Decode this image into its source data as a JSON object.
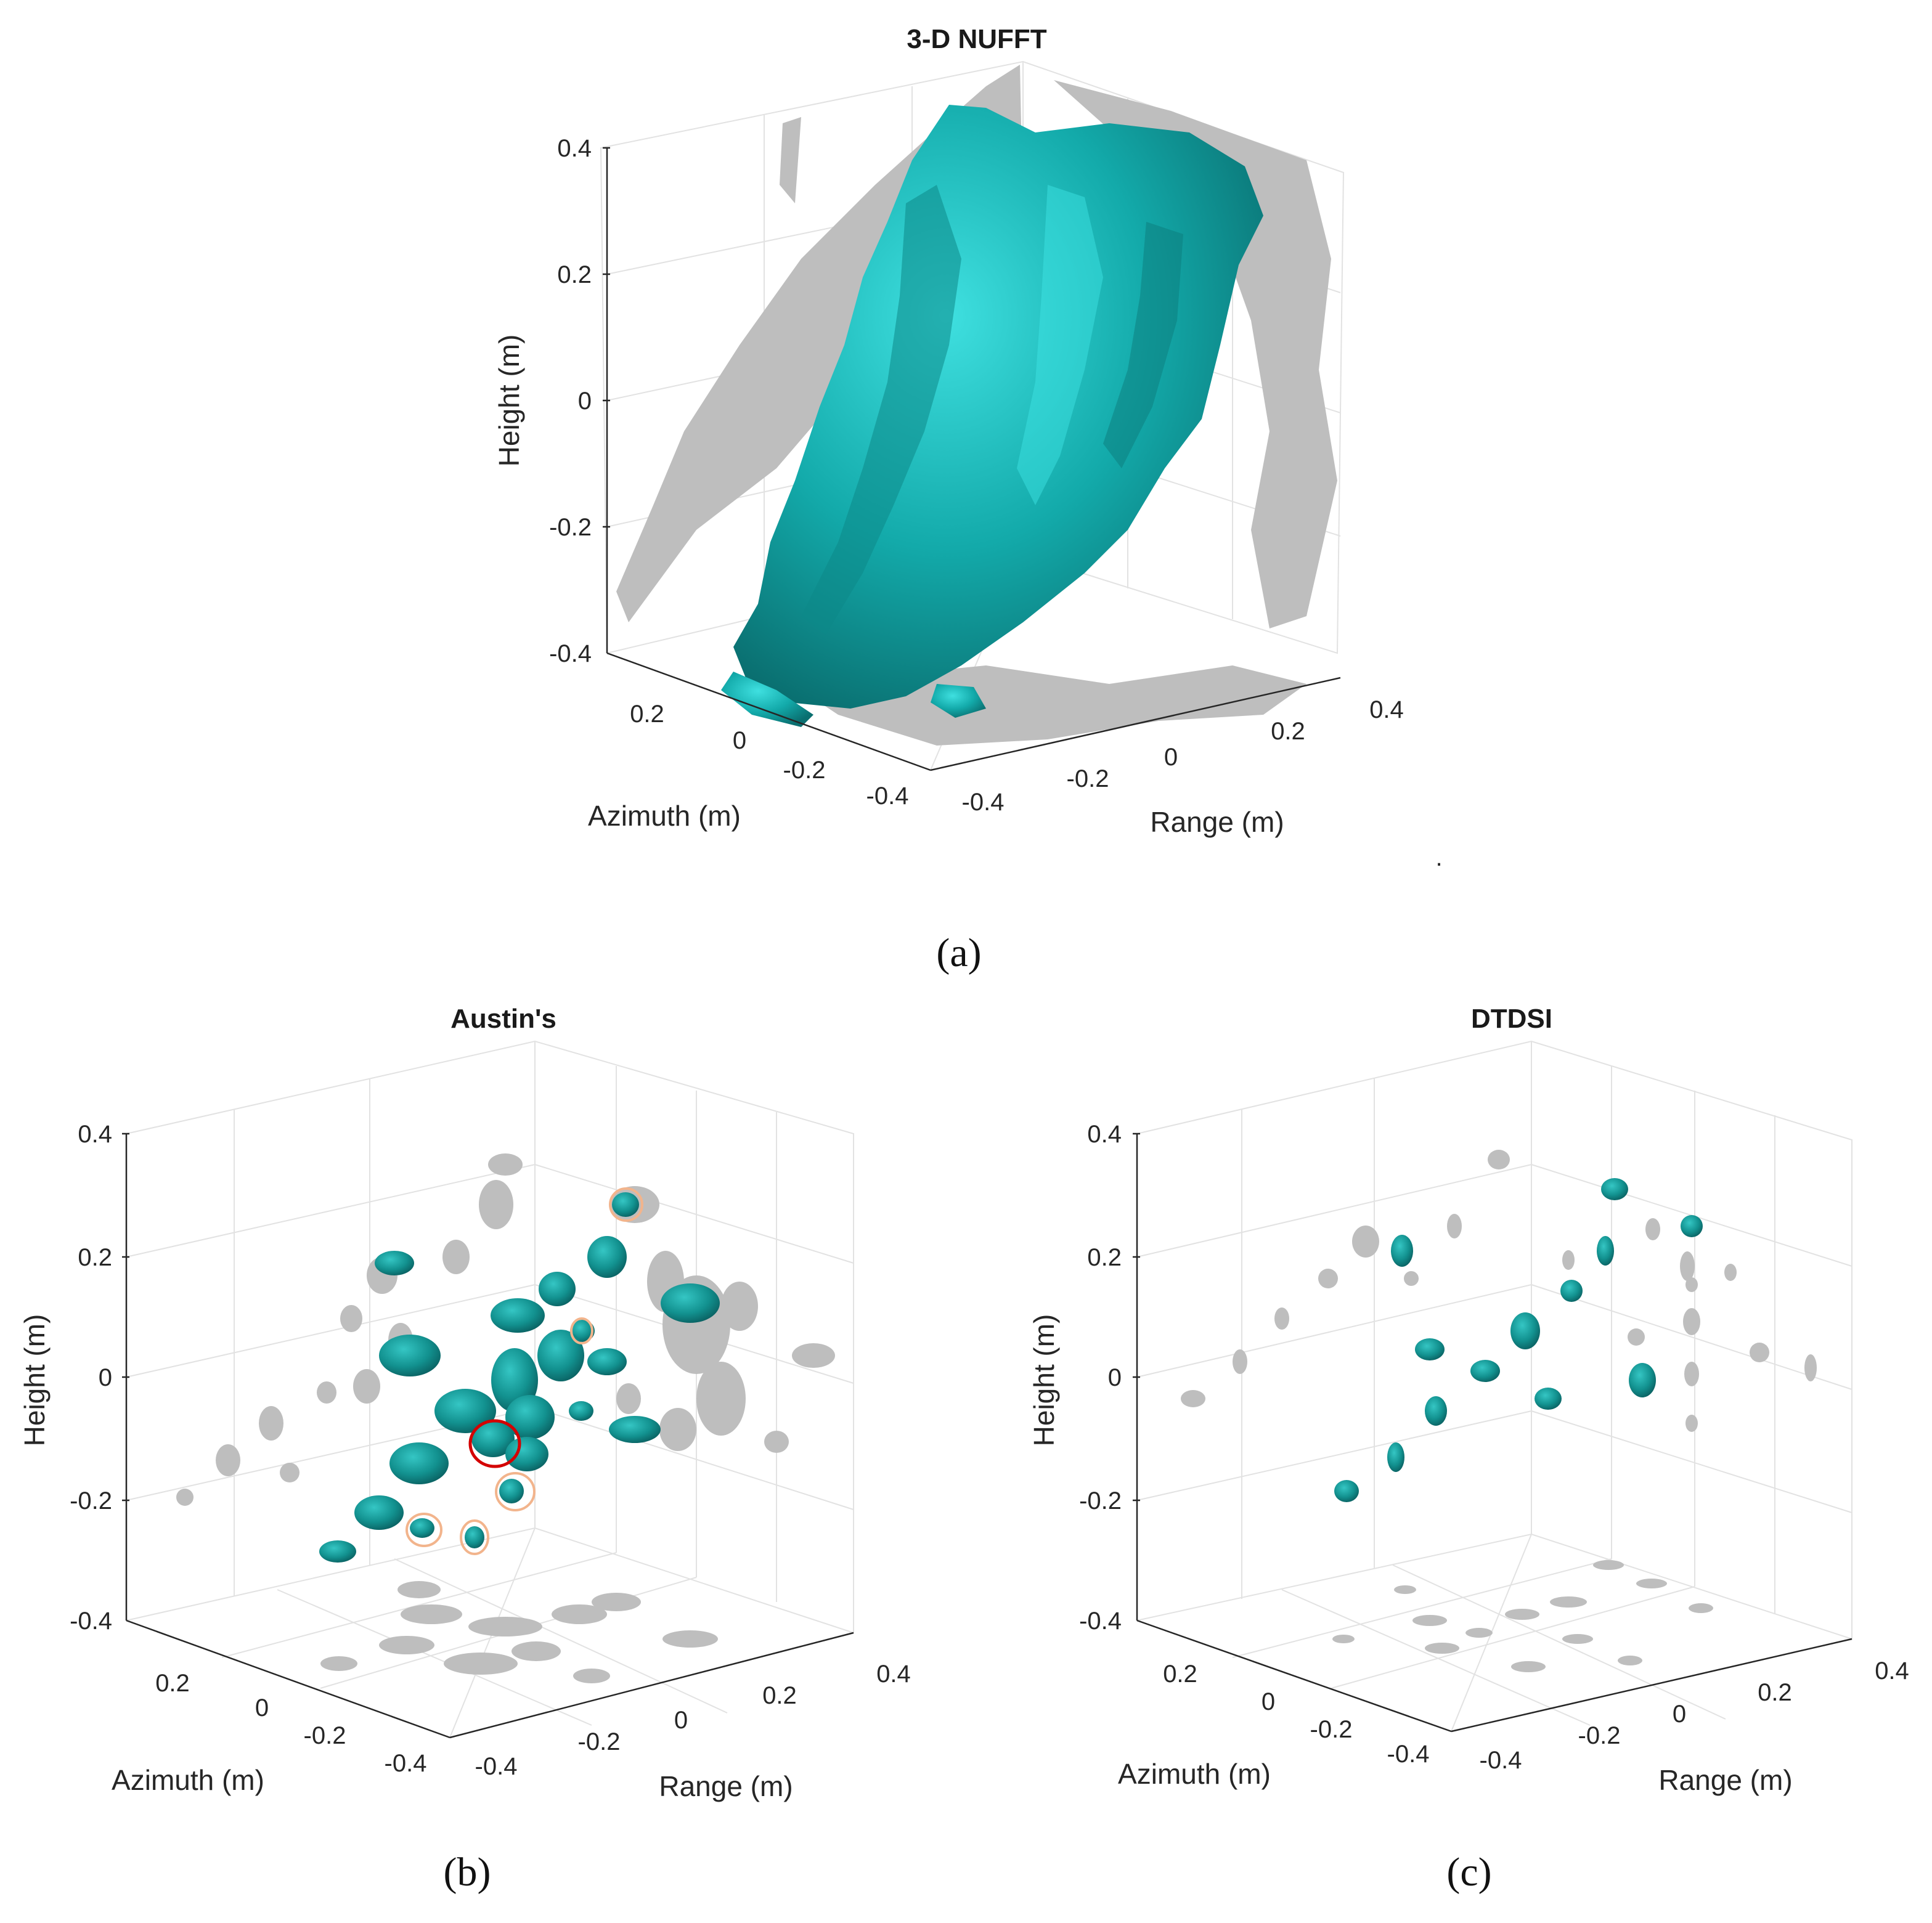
{
  "chart_data": [
    {
      "type": "3d-isosurface",
      "panel_label": "(a)",
      "title": "3-D NUFFT",
      "xlabel": "Azimuth (m)",
      "ylabel": "Range (m)",
      "zlabel": "Height (m)",
      "x_ticks": [
        "0.2",
        "0",
        "-0.2",
        "-0.4"
      ],
      "y_ticks": [
        "-0.4",
        "-0.2",
        "0",
        "0.2",
        "0.4"
      ],
      "z_ticks": [
        "0.4",
        "0.2",
        "0",
        "-0.2",
        "-0.4"
      ],
      "xlim": [
        -0.4,
        0.4
      ],
      "ylim": [
        -0.4,
        0.4
      ],
      "zlim": [
        -0.4,
        0.4
      ],
      "surface_color": "#1aa6a6",
      "projection_color": "#bebebe"
    },
    {
      "type": "3d-isosurface",
      "panel_label": "(b)",
      "title": "Austin's",
      "xlabel": "Azimuth (m)",
      "ylabel": "Range (m)",
      "zlabel": "Height (m)",
      "x_ticks": [
        "0.2",
        "0",
        "-0.2",
        "-0.4"
      ],
      "y_ticks": [
        "-0.4",
        "-0.2",
        "0",
        "0.2",
        "0.4"
      ],
      "z_ticks": [
        "0.4",
        "0.2",
        "0",
        "-0.2",
        "-0.4"
      ],
      "xlim": [
        -0.4,
        0.4
      ],
      "ylim": [
        -0.4,
        0.4
      ],
      "zlim": [
        -0.4,
        0.4
      ],
      "surface_color": "#17908f",
      "projection_color": "#bebebe",
      "highlight_circle_color": "#d40000",
      "marker_circle_color": "#f2b48c"
    },
    {
      "type": "3d-isosurface",
      "panel_label": "(c)",
      "title": "DTDSI",
      "xlabel": "Azimuth (m)",
      "ylabel": "Range (m)",
      "zlabel": "Height (m)",
      "x_ticks": [
        "0.2",
        "0",
        "-0.2",
        "-0.4"
      ],
      "y_ticks": [
        "-0.4",
        "-0.2",
        "0",
        "0.2",
        "0.4"
      ],
      "z_ticks": [
        "0.4",
        "0.2",
        "0",
        "-0.2",
        "-0.4"
      ],
      "xlim": [
        -0.4,
        0.4
      ],
      "ylim": [
        -0.4,
        0.4
      ],
      "zlim": [
        -0.4,
        0.4
      ],
      "surface_color": "#17908f",
      "projection_color": "#bebebe"
    }
  ],
  "stray_mark": "."
}
